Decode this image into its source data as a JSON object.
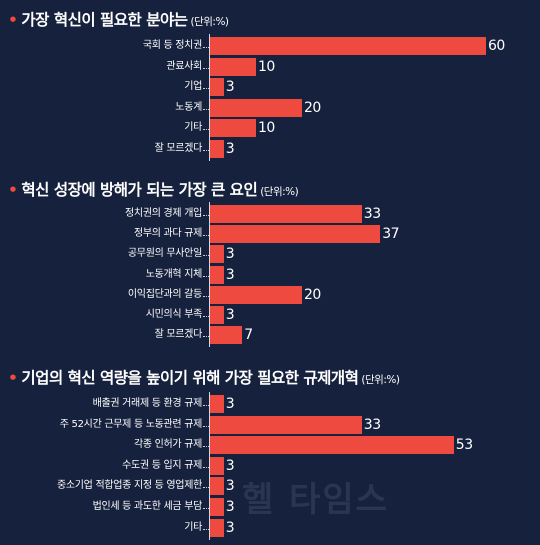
{
  "watermark": "헬 타임스",
  "colors": {
    "background": "#16213d",
    "bar": "#ee4a3f",
    "text": "#ffffff",
    "accent_shape": "#ee4a3f"
  },
  "chart_data": [
    {
      "type": "bar",
      "orientation": "horizontal",
      "title": "가장 혁신이 필요한 분야는",
      "unit": "(단위:%)",
      "categories": [
        "국회 등 정치권",
        "관료사회",
        "기업",
        "노동계",
        "기타",
        "잘 모르겠다"
      ],
      "values": [
        60,
        10,
        3,
        20,
        10,
        3
      ]
    },
    {
      "type": "bar",
      "orientation": "horizontal",
      "title": "혁신 성장에 방해가 되는 가장 큰 요인",
      "unit": "(단위:%)",
      "categories": [
        "정치권의 경제 개입",
        "정부의 과다 규제",
        "공무원의 무사안일",
        "노동개혁 지체",
        "이익집단과의 갈등",
        "시민의식 부족",
        "잘 모르겠다"
      ],
      "values": [
        33,
        37,
        3,
        3,
        20,
        3,
        7
      ]
    },
    {
      "type": "bar",
      "orientation": "horizontal",
      "title": "기업의 혁신 역량을 높이기 위해 가장 필요한 규제개혁",
      "unit": "(단위:%)",
      "categories": [
        "배출권 거래제 등 환경 규제",
        "주 52시간 근무제 등 노동관련 규제",
        "각종 인허가 규제",
        "수도권 등 입지 규제",
        "중소기업 적합업종 지정 등 영업제한",
        "법인세 등 과도한 세금 부담",
        "기타"
      ],
      "values": [
        3,
        33,
        53,
        3,
        3,
        3,
        3
      ]
    }
  ]
}
